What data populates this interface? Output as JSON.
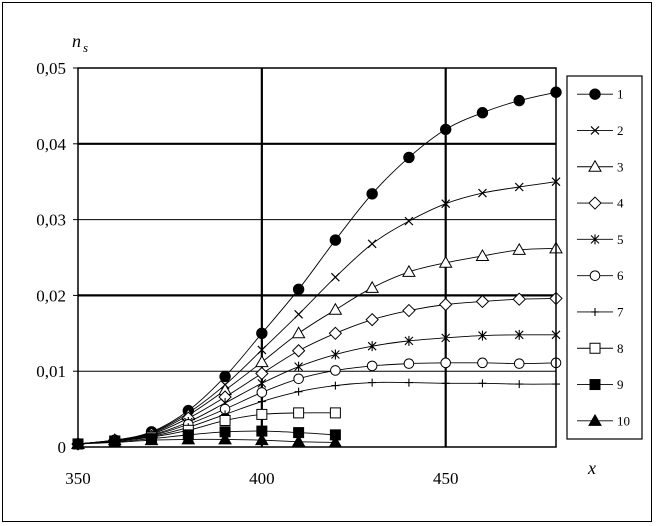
{
  "chart_data": {
    "type": "line",
    "ylabel": "n",
    "ylabel_sub": "s",
    "xlabel": "x",
    "xlim": [
      350,
      480
    ],
    "ylim": [
      0,
      0.05
    ],
    "xticks": [
      350,
      400,
      450
    ],
    "xtick_labels": [
      "350",
      "400",
      "450"
    ],
    "yticks": [
      0,
      0.01,
      0.02,
      0.03,
      0.04,
      0.05
    ],
    "ytick_labels": [
      "0",
      "0,01",
      "0,02",
      "0,03",
      "0,04",
      "0,05"
    ],
    "grid": "major lines at x=400, x=450 and y=0.02, 0.04; minor at y=0.01, 0.03",
    "legend_position": "right",
    "series": [
      {
        "name": "1",
        "marker": "filled-circle",
        "x": [
          350,
          360,
          370,
          380,
          390,
          400,
          410,
          420,
          430,
          440,
          450,
          460,
          470,
          480
        ],
        "y": [
          0.0004,
          0.0009,
          0.002,
          0.0048,
          0.0093,
          0.015,
          0.0208,
          0.0273,
          0.0334,
          0.0382,
          0.0419,
          0.0441,
          0.0457,
          0.0468
        ]
      },
      {
        "name": "2",
        "marker": "x",
        "x": [
          350,
          360,
          370,
          380,
          390,
          400,
          410,
          420,
          430,
          440,
          450,
          460,
          470,
          480
        ],
        "y": [
          0.0004,
          0.0009,
          0.0019,
          0.0045,
          0.0082,
          0.0128,
          0.0175,
          0.0224,
          0.0268,
          0.0298,
          0.0321,
          0.0335,
          0.0343,
          0.035
        ]
      },
      {
        "name": "3",
        "marker": "open-triangle",
        "x": [
          350,
          360,
          370,
          380,
          390,
          400,
          410,
          420,
          430,
          440,
          450,
          460,
          470,
          480
        ],
        "y": [
          0.0004,
          0.0009,
          0.0018,
          0.0042,
          0.0075,
          0.0112,
          0.015,
          0.0181,
          0.021,
          0.0231,
          0.0243,
          0.0252,
          0.026,
          0.0262
        ]
      },
      {
        "name": "4",
        "marker": "open-diamond",
        "x": [
          350,
          360,
          370,
          380,
          390,
          400,
          410,
          420,
          430,
          440,
          450,
          460,
          470,
          480
        ],
        "y": [
          0.0004,
          0.0009,
          0.0017,
          0.0038,
          0.0066,
          0.0097,
          0.0127,
          0.015,
          0.0168,
          0.018,
          0.0188,
          0.0192,
          0.0195,
          0.0196
        ]
      },
      {
        "name": "5",
        "marker": "asterisk",
        "x": [
          350,
          360,
          370,
          380,
          390,
          400,
          410,
          420,
          430,
          440,
          450,
          460,
          470,
          480
        ],
        "y": [
          0.0004,
          0.0009,
          0.0016,
          0.0033,
          0.0058,
          0.0084,
          0.0106,
          0.0122,
          0.0133,
          0.014,
          0.0144,
          0.0147,
          0.0148,
          0.0148
        ]
      },
      {
        "name": "6",
        "marker": "open-circle",
        "x": [
          350,
          360,
          370,
          380,
          390,
          400,
          410,
          420,
          430,
          440,
          450,
          460,
          470,
          480
        ],
        "y": [
          0.0004,
          0.0008,
          0.0015,
          0.003,
          0.005,
          0.0072,
          0.009,
          0.0101,
          0.0107,
          0.011,
          0.0111,
          0.0111,
          0.011,
          0.0111
        ]
      },
      {
        "name": "7",
        "marker": "plus",
        "x": [
          350,
          360,
          370,
          380,
          390,
          400,
          410,
          420,
          430,
          440,
          450,
          460,
          470,
          480
        ],
        "y": [
          0.0004,
          0.0008,
          0.0014,
          0.0026,
          0.0043,
          0.006,
          0.0073,
          0.0081,
          0.0085,
          0.0085,
          0.0084,
          0.0084,
          0.0083,
          0.0083
        ]
      },
      {
        "name": "8",
        "marker": "open-square",
        "x": [
          350,
          360,
          370,
          380,
          390,
          400,
          410,
          420
        ],
        "y": [
          0.0004,
          0.0008,
          0.0013,
          0.0022,
          0.0035,
          0.0043,
          0.0045,
          0.0045
        ]
      },
      {
        "name": "9",
        "marker": "filled-square",
        "x": [
          350,
          360,
          370,
          380,
          390,
          400,
          410,
          420
        ],
        "y": [
          0.0004,
          0.0007,
          0.0011,
          0.0016,
          0.002,
          0.0021,
          0.0019,
          0.0016
        ]
      },
      {
        "name": "10",
        "marker": "filled-triangle",
        "x": [
          350,
          360,
          370,
          380,
          390,
          400,
          410,
          420
        ],
        "y": [
          0.0004,
          0.0006,
          0.0009,
          0.001,
          0.001,
          0.0009,
          0.0007,
          0.0006
        ]
      }
    ]
  }
}
